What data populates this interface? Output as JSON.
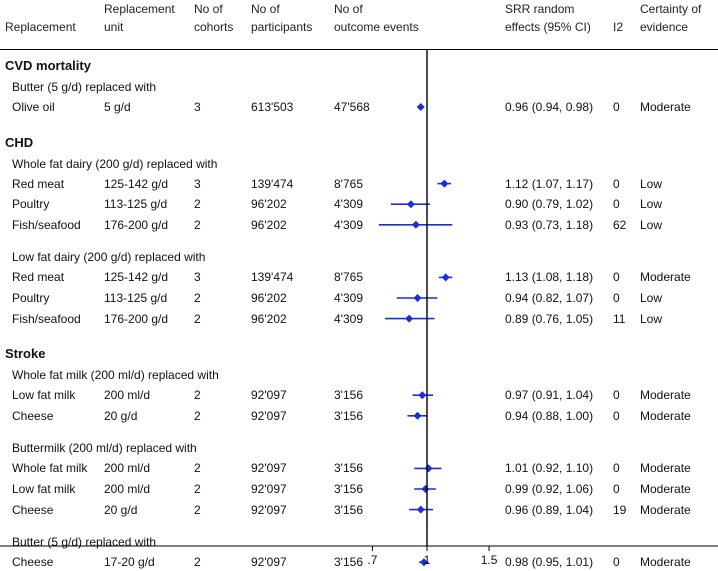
{
  "headers": {
    "replacement": "Replacement",
    "unit_line1": "Replacement",
    "unit_line2": "unit",
    "cohorts_line1": "No of",
    "cohorts_line2": "cohorts",
    "participants_line1": "No of",
    "participants_line2": "participants",
    "events_line1": "No of",
    "events_line2": "outcome events",
    "srr_line1": "SRR random",
    "srr_line2": "effects (95% CI)",
    "i2": "I2",
    "certainty_line1": "Certainty of",
    "certainty_line2": "evidence"
  },
  "colors": {
    "marker": "#1a2fd6",
    "text": "#111111",
    "axis": "#000000"
  },
  "chart_data": {
    "type": "forest",
    "x_scale": "log",
    "xlim": [
      0.63,
      1.6
    ],
    "reference_line": 1,
    "x_ticks": [
      {
        "value": 0.7,
        "label": ".7"
      },
      {
        "value": 1,
        "label": "1"
      },
      {
        "value": 1.5,
        "label": "1.5"
      }
    ],
    "sections": [
      {
        "title": "CVD mortality",
        "groups": [
          {
            "label": "Butter (5 g/d) replaced with",
            "rows": [
              {
                "replacement": "Olive oil",
                "unit": "5 g/d",
                "cohorts": "3",
                "participants": "613'503",
                "events": "47'568",
                "est": 0.96,
                "lo": 0.94,
                "hi": 0.98,
                "srr_text": "0.96 (0.94, 0.98)",
                "i2": "0",
                "certainty": "Moderate"
              }
            ]
          }
        ]
      },
      {
        "title": "CHD",
        "groups": [
          {
            "label": "Whole fat dairy (200 g/d) replaced with",
            "rows": [
              {
                "replacement": "Red meat",
                "unit": "125-142 g/d",
                "cohorts": "3",
                "participants": "139'474",
                "events": "8'765",
                "est": 1.12,
                "lo": 1.07,
                "hi": 1.17,
                "srr_text": "1.12 (1.07, 1.17)",
                "i2": "0",
                "certainty": "Low"
              },
              {
                "replacement": "Poultry",
                "unit": "113-125 g/d",
                "cohorts": "2",
                "participants": "96'202",
                "events": "4'309",
                "est": 0.9,
                "lo": 0.79,
                "hi": 1.02,
                "srr_text": "0.90 (0.79, 1.02)",
                "i2": "0",
                "certainty": "Low"
              },
              {
                "replacement": "Fish/seafood",
                "unit": "176-200 g/d",
                "cohorts": "2",
                "participants": "96'202",
                "events": "4'309",
                "est": 0.93,
                "lo": 0.73,
                "hi": 1.18,
                "srr_text": "0.93 (0.73, 1.18)",
                "i2": "62",
                "certainty": "Low"
              }
            ]
          },
          {
            "label": "Low fat dairy (200 g/d) replaced with",
            "rows": [
              {
                "replacement": "Red meat",
                "unit": "125-142 g/d",
                "cohorts": "3",
                "participants": "139'474",
                "events": "8'765",
                "est": 1.13,
                "lo": 1.08,
                "hi": 1.18,
                "srr_text": "1.13 (1.08, 1.18)",
                "i2": "0",
                "certainty": "Moderate"
              },
              {
                "replacement": "Poultry",
                "unit": "113-125 g/d",
                "cohorts": "2",
                "participants": "96'202",
                "events": "4'309",
                "est": 0.94,
                "lo": 0.82,
                "hi": 1.07,
                "srr_text": "0.94 (0.82, 1.07)",
                "i2": "0",
                "certainty": "Low"
              },
              {
                "replacement": "Fish/seafood",
                "unit": "176-200 g/d",
                "cohorts": "2",
                "participants": "96'202",
                "events": "4'309",
                "est": 0.89,
                "lo": 0.76,
                "hi": 1.05,
                "srr_text": "0.89 (0.76, 1.05)",
                "i2": "11",
                "certainty": "Low"
              }
            ]
          }
        ]
      },
      {
        "title": "Stroke",
        "groups": [
          {
            "label": "Whole fat milk (200 ml/d) replaced with",
            "rows": [
              {
                "replacement": "Low fat milk",
                "unit": "200 ml/d",
                "cohorts": "2",
                "participants": "92'097",
                "events": "3'156",
                "est": 0.97,
                "lo": 0.91,
                "hi": 1.04,
                "srr_text": "0.97 (0.91, 1.04)",
                "i2": "0",
                "certainty": "Moderate"
              },
              {
                "replacement": "Cheese",
                "unit": "20 g/d",
                "cohorts": "2",
                "participants": "92'097",
                "events": "3'156",
                "est": 0.94,
                "lo": 0.88,
                "hi": 1.0,
                "srr_text": "0.94 (0.88, 1.00)",
                "i2": "0",
                "certainty": "Moderate"
              }
            ]
          },
          {
            "label": "Buttermilk (200 ml/d) replaced with",
            "rows": [
              {
                "replacement": "Whole fat milk",
                "unit": "200 ml/d",
                "cohorts": "2",
                "participants": "92'097",
                "events": "3'156",
                "est": 1.01,
                "lo": 0.92,
                "hi": 1.1,
                "srr_text": "1.01 (0.92, 1.10)",
                "i2": "0",
                "certainty": "Moderate"
              },
              {
                "replacement": "Low fat milk",
                "unit": "200 ml/d",
                "cohorts": "2",
                "participants": "92'097",
                "events": "3'156",
                "est": 0.99,
                "lo": 0.92,
                "hi": 1.06,
                "srr_text": "0.99 (0.92, 1.06)",
                "i2": "0",
                "certainty": "Moderate"
              },
              {
                "replacement": "Cheese",
                "unit": "20 g/d",
                "cohorts": "2",
                "participants": "92'097",
                "events": "3'156",
                "est": 0.96,
                "lo": 0.89,
                "hi": 1.04,
                "srr_text": "0.96 (0.89, 1.04)",
                "i2": "19",
                "certainty": "Moderate"
              }
            ]
          },
          {
            "label": "Butter (5 g/d) replaced with",
            "rows": [
              {
                "replacement": "Cheese",
                "unit": "17-20 g/d",
                "cohorts": "2",
                "participants": "92'097",
                "events": "3'156",
                "est": 0.98,
                "lo": 0.95,
                "hi": 1.01,
                "srr_text": "0.98 (0.95, 1.01)",
                "i2": "0",
                "certainty": "Moderate"
              }
            ]
          }
        ]
      }
    ]
  }
}
